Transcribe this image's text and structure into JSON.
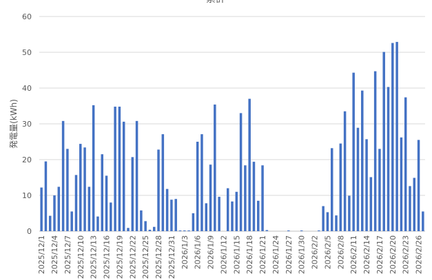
{
  "chart_data": {
    "type": "bar",
    "title": "累計",
    "xlabel": "",
    "ylabel": "発電量(kWh)",
    "ylim": [
      0,
      60
    ],
    "yticks": [
      0,
      10,
      20,
      30,
      40,
      50,
      60
    ],
    "grid": true,
    "legend": "none",
    "bar_color": "#4472C4",
    "categories": [
      "2025/12/1",
      "2025/12/2",
      "2025/12/3",
      "2025/12/4",
      "2025/12/5",
      "2025/12/6",
      "2025/12/7",
      "2025/12/8",
      "2025/12/9",
      "2025/12/10",
      "2025/12/11",
      "2025/12/12",
      "2025/12/13",
      "2025/12/14",
      "2025/12/15",
      "2025/12/16",
      "2025/12/17",
      "2025/12/18",
      "2025/12/19",
      "2025/12/20",
      "2025/12/21",
      "2025/12/22",
      "2025/12/23",
      "2025/12/24",
      "2025/12/25",
      "2025/12/26",
      "2025/12/27",
      "2025/12/28",
      "2025/12/29",
      "2025/12/30",
      "2025/12/31",
      "2026/1/1",
      "2026/1/2",
      "2026/1/3",
      "2026/1/4",
      "2026/1/5",
      "2026/1/6",
      "2026/1/7",
      "2026/1/8",
      "2026/1/9",
      "2026/1/10",
      "2026/1/11",
      "2026/1/12",
      "2026/1/13",
      "2026/1/14",
      "2026/1/15",
      "2026/1/16",
      "2026/1/17",
      "2026/1/18",
      "2026/1/19",
      "2026/1/20",
      "2026/1/21",
      "2026/1/22",
      "2026/1/23",
      "2026/1/24",
      "2026/1/25",
      "2026/1/26",
      "2026/1/27",
      "2026/1/28",
      "2026/1/29",
      "2026/1/30",
      "2026/1/31",
      "2026/2/1",
      "2026/2/2",
      "2026/2/3",
      "2026/2/4",
      "2026/2/5",
      "2026/2/6",
      "2026/2/7",
      "2026/2/8",
      "2026/2/9",
      "2026/2/10",
      "2026/2/11",
      "2026/2/12",
      "2026/2/13",
      "2026/2/14",
      "2026/2/15",
      "2026/2/16",
      "2026/2/17",
      "2026/2/18",
      "2026/2/19",
      "2026/2/20",
      "2026/2/21",
      "2026/2/22",
      "2026/2/23",
      "2026/2/24",
      "2026/2/25",
      "2026/2/26",
      "2026/2/27"
    ],
    "values": [
      12.2,
      19.5,
      4.3,
      10,
      12.4,
      30.8,
      23,
      5.5,
      15.7,
      24.4,
      23.4,
      12.4,
      35.2,
      4.1,
      21.5,
      15.5,
      8,
      34.8,
      34.8,
      30.6,
      0.9,
      20.7,
      30.8,
      5.8,
      2.8,
      0.4,
      1.2,
      22.8,
      27.1,
      11.8,
      8.8,
      9,
      0.2,
      0.2,
      0.2,
      5,
      25,
      27.1,
      7.8,
      18.6,
      35.4,
      9.6,
      0,
      12,
      8.3,
      11,
      33,
      18.4,
      37,
      19.4,
      8.5,
      18.4,
      0.3,
      0,
      0,
      0,
      0,
      0.2,
      0,
      0,
      0.2,
      0,
      0,
      0,
      0.2,
      7,
      5.3,
      23.2,
      4.4,
      24.5,
      33.5,
      9.9,
      44.3,
      28.9,
      39.3,
      25.7,
      15.1,
      44.7,
      23,
      50.1,
      40.3,
      52.6,
      52.9,
      26.2,
      37.4,
      12.6,
      14.9,
      25.5,
      5.5
    ],
    "xtick_every": 3
  }
}
